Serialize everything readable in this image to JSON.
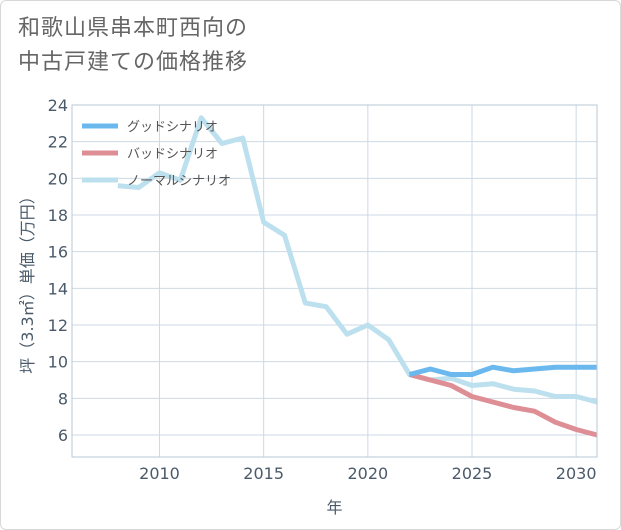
{
  "title": {
    "line1": "和歌山県串本町西向の",
    "line2": "中古戸建ての価格推移"
  },
  "chart_data": {
    "type": "line",
    "xlabel": "年",
    "ylabel": "坪（3.3㎡）単価（万円）",
    "xlim": [
      2005.8,
      2031
    ],
    "ylim": [
      4.8,
      24
    ],
    "x_ticks": [
      2010,
      2015,
      2020,
      2025,
      2030
    ],
    "y_ticks": [
      6,
      8,
      10,
      12,
      14,
      16,
      18,
      20,
      22,
      24
    ],
    "grid": true,
    "legend_position": "top-left",
    "series": [
      {
        "name": "グッドシナリオ",
        "color": "#6bb8ee",
        "points": [
          [
            2022,
            9.3
          ],
          [
            2023,
            9.6
          ],
          [
            2024,
            9.3
          ],
          [
            2025,
            9.3
          ],
          [
            2026,
            9.7
          ],
          [
            2027,
            9.5
          ],
          [
            2028,
            9.6
          ],
          [
            2029,
            9.7
          ],
          [
            2030,
            9.7
          ],
          [
            2031,
            9.7
          ]
        ]
      },
      {
        "name": "バッドシナリオ",
        "color": "#de8f96",
        "points": [
          [
            2022,
            9.3
          ],
          [
            2023,
            9.0
          ],
          [
            2024,
            8.7
          ],
          [
            2025,
            8.1
          ],
          [
            2026,
            7.8
          ],
          [
            2027,
            7.5
          ],
          [
            2028,
            7.3
          ],
          [
            2029,
            6.7
          ],
          [
            2030,
            6.3
          ],
          [
            2031,
            6.0
          ]
        ]
      },
      {
        "name": "ノーマルシナリオ",
        "color": "#bde0ee",
        "points": [
          [
            2008,
            19.6
          ],
          [
            2009,
            19.5
          ],
          [
            2010,
            20.3
          ],
          [
            2011,
            19.9
          ],
          [
            2012,
            23.3
          ],
          [
            2013,
            21.9
          ],
          [
            2014,
            22.2
          ],
          [
            2015,
            17.6
          ],
          [
            2016,
            16.9
          ],
          [
            2017,
            13.2
          ],
          [
            2018,
            13.0
          ],
          [
            2019,
            11.5
          ],
          [
            2020,
            12.0
          ],
          [
            2021,
            11.2
          ],
          [
            2022,
            9.3
          ],
          [
            2023,
            9.0
          ],
          [
            2024,
            9.1
          ],
          [
            2025,
            8.7
          ],
          [
            2026,
            8.8
          ],
          [
            2027,
            8.5
          ],
          [
            2028,
            8.4
          ],
          [
            2029,
            8.1
          ],
          [
            2030,
            8.1
          ],
          [
            2031,
            7.8
          ]
        ]
      }
    ]
  }
}
